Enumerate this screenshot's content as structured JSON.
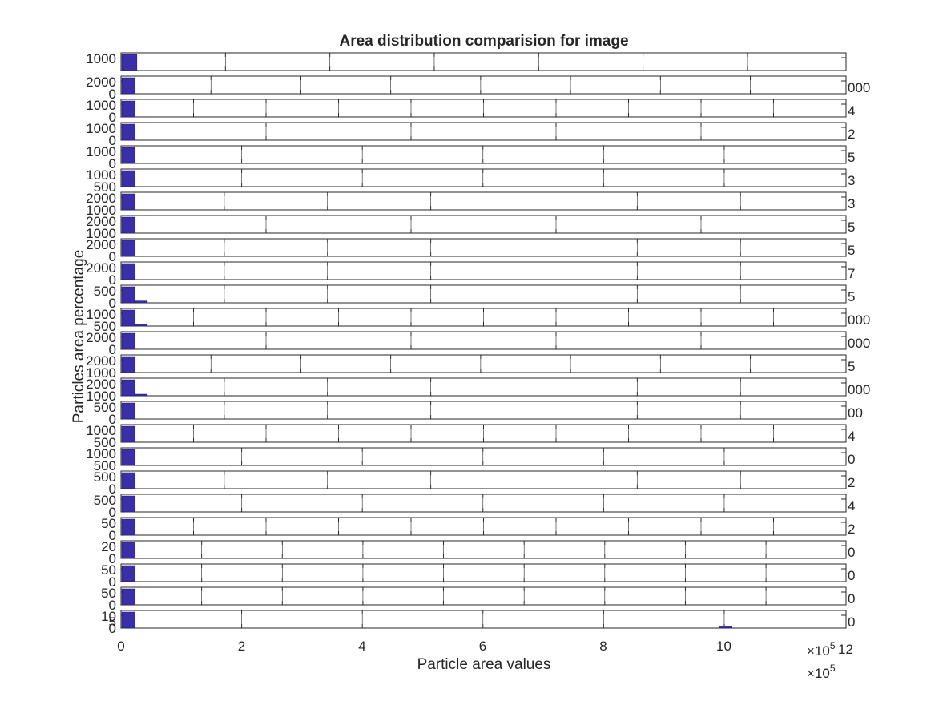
{
  "chart_data": {
    "type": "bar",
    "title": "Area distribution comparision for image",
    "xlabel": "Particle area values",
    "ylabel": "Particles area percentage",
    "grid": false,
    "bar_color": "#3a2fa8",
    "axes_color": "#262626",
    "panels": [
      {
        "ymax_label": "1000",
        "ymin_label": "",
        "xmax": 12.5,
        "xstep": 1.8,
        "bars": [
          {
            "x": 0,
            "w": 0.26,
            "h": 1.0
          }
        ],
        "right_label": ""
      },
      {
        "ymax_label": "2000",
        "ymin_label": "0",
        "xmax": 12.5,
        "xstep": 1.55,
        "bars": [
          {
            "x": 0,
            "w": 0.22,
            "h": 1.0
          }
        ],
        "right_label": "000"
      },
      {
        "ymax_label": "1000",
        "ymin_label": "0",
        "xmax": 12.5,
        "xstep": 1.25,
        "bars": [
          {
            "x": 0,
            "w": 0.22,
            "h": 1.0
          }
        ],
        "right_label": "4"
      },
      {
        "ymax_label": "1000",
        "ymin_label": "0",
        "xmax": 12.5,
        "xstep": 2.5,
        "bars": [
          {
            "x": 0,
            "w": 0.22,
            "h": 1.0
          }
        ],
        "right_label": "2"
      },
      {
        "ymax_label": "1000",
        "ymin_label": "0",
        "xmax": 12.5,
        "xstep": 2.08,
        "bars": [
          {
            "x": 0,
            "w": 0.22,
            "h": 1.0
          }
        ],
        "right_label": "5"
      },
      {
        "ymax_label": "1000",
        "ymin_label": "500",
        "xmax": 12.5,
        "xstep": 2.08,
        "bars": [
          {
            "x": 0,
            "w": 0.22,
            "h": 1.0
          }
        ],
        "right_label": "3"
      },
      {
        "ymax_label": "2000",
        "ymin_label": "1000",
        "xmax": 12.5,
        "xstep": 1.78,
        "bars": [
          {
            "x": 0,
            "w": 0.22,
            "h": 1.0
          }
        ],
        "right_label": "3"
      },
      {
        "ymax_label": "2000",
        "ymin_label": "1000",
        "xmax": 12.5,
        "xstep": 2.5,
        "bars": [
          {
            "x": 0,
            "w": 0.22,
            "h": 1.0
          }
        ],
        "right_label": "5"
      },
      {
        "ymax_label": "2000",
        "ymin_label": "0",
        "xmax": 12.5,
        "xstep": 1.78,
        "bars": [
          {
            "x": 0,
            "w": 0.22,
            "h": 1.0
          }
        ],
        "right_label": "5"
      },
      {
        "ymax_label": "2000",
        "ymin_label": "0",
        "xmax": 12.5,
        "xstep": 1.78,
        "bars": [
          {
            "x": 0,
            "w": 0.22,
            "h": 1.0
          }
        ],
        "right_label": "7"
      },
      {
        "ymax_label": "500",
        "ymin_label": "0",
        "xmax": 12.5,
        "xstep": 1.78,
        "bars": [
          {
            "x": 0,
            "w": 0.22,
            "h": 1.0
          },
          {
            "x": 0.22,
            "w": 0.22,
            "h": 0.12
          }
        ],
        "right_label": "5"
      },
      {
        "ymax_label": "1000",
        "ymin_label": "500",
        "xmax": 12.5,
        "xstep": 1.25,
        "bars": [
          {
            "x": 0,
            "w": 0.22,
            "h": 1.0
          },
          {
            "x": 0.22,
            "w": 0.22,
            "h": 0.12
          }
        ],
        "right_label": "000"
      },
      {
        "ymax_label": "2000",
        "ymin_label": "0",
        "xmax": 12.5,
        "xstep": 2.5,
        "bars": [
          {
            "x": 0,
            "w": 0.22,
            "h": 1.0
          }
        ],
        "right_label": "000"
      },
      {
        "ymax_label": "2000",
        "ymin_label": "1000",
        "xmax": 12.5,
        "xstep": 1.55,
        "bars": [
          {
            "x": 0,
            "w": 0.22,
            "h": 1.0
          }
        ],
        "right_label": "5"
      },
      {
        "ymax_label": "2000",
        "ymin_label": "1000",
        "xmax": 12.5,
        "xstep": 1.78,
        "bars": [
          {
            "x": 0,
            "w": 0.22,
            "h": 1.0
          },
          {
            "x": 0.22,
            "w": 0.22,
            "h": 0.1
          }
        ],
        "right_label": "000"
      },
      {
        "ymax_label": "500",
        "ymin_label": "0",
        "xmax": 12.5,
        "xstep": 1.78,
        "bars": [
          {
            "x": 0,
            "w": 0.22,
            "h": 1.0
          }
        ],
        "right_label": "00"
      },
      {
        "ymax_label": "1000",
        "ymin_label": "500",
        "xmax": 12.5,
        "xstep": 1.25,
        "bars": [
          {
            "x": 0,
            "w": 0.22,
            "h": 1.0
          }
        ],
        "right_label": "4"
      },
      {
        "ymax_label": "1000",
        "ymin_label": "500",
        "xmax": 12.5,
        "xstep": 2.08,
        "bars": [
          {
            "x": 0,
            "w": 0.22,
            "h": 1.0
          }
        ],
        "right_label": "0"
      },
      {
        "ymax_label": "500",
        "ymin_label": "0",
        "xmax": 12.5,
        "xstep": 1.78,
        "bars": [
          {
            "x": 0,
            "w": 0.22,
            "h": 1.0
          }
        ],
        "right_label": "2"
      },
      {
        "ymax_label": "500",
        "ymin_label": "0",
        "xmax": 12.5,
        "xstep": 2.08,
        "bars": [
          {
            "x": 0,
            "w": 0.22,
            "h": 1.0
          }
        ],
        "right_label": "4"
      },
      {
        "ymax_label": "50",
        "ymin_label": "0",
        "xmax": 12.5,
        "xstep": 1.25,
        "bars": [
          {
            "x": 0,
            "w": 0.22,
            "h": 1.0
          }
        ],
        "right_label": "2"
      },
      {
        "ymax_label": "20",
        "ymin_label": "0",
        "xmax": 12.5,
        "xstep": 1.39,
        "bars": [
          {
            "x": 0,
            "w": 0.22,
            "h": 1.0
          }
        ],
        "right_label": "0"
      },
      {
        "ymax_label": "50",
        "ymin_label": "0",
        "xmax": 12.5,
        "xstep": 1.39,
        "bars": [
          {
            "x": 0,
            "w": 0.22,
            "h": 1.0
          }
        ],
        "right_label": "0"
      },
      {
        "ymax_label": "50",
        "ymin_label": "0",
        "xmax": 12.5,
        "xstep": 1.39,
        "bars": [
          {
            "x": 0,
            "w": 0.22,
            "h": 1.0
          }
        ],
        "right_label": "0"
      },
      {
        "ymax_label": "10",
        "ymin_label": "0",
        "ymid_label": "5",
        "xmax": 12.5,
        "xstep": 2.08,
        "bars": [
          {
            "x": 0,
            "w": 0.22,
            "h": 1.0
          },
          {
            "x": 10.3,
            "w": 0.22,
            "h": 0.12
          }
        ],
        "right_label": "0"
      }
    ],
    "x_axis": {
      "min": 0,
      "max": 12,
      "ticks": [
        0,
        2,
        4,
        6,
        8,
        10
      ],
      "tick_labels": [
        "0",
        "2",
        "4",
        "6",
        "8",
        "10"
      ],
      "end_label": "12",
      "exponent_label_base": "×10",
      "exponent": "5"
    }
  }
}
